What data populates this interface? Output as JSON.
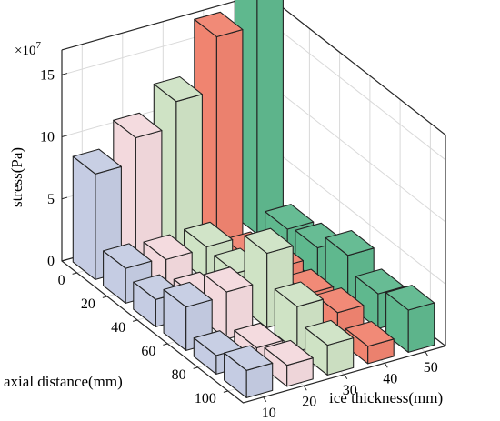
{
  "chart_data": {
    "type": "bar3d",
    "title": "",
    "zlabel": "stress(Pa)",
    "zmultiplier": "×10",
    "zmultiplier_exp": "7",
    "xlabel": "axial distance(mm)",
    "ylabel": "ice thickness(mm)",
    "x_ticks": [
      "0",
      "20",
      "40",
      "60",
      "80",
      "100"
    ],
    "y_ticks": [
      "10",
      "20",
      "30",
      "40",
      "50"
    ],
    "z_ticks": [
      "0",
      "5",
      "10",
      "15"
    ],
    "zlim": [
      0,
      17
    ],
    "grid": true,
    "series": [
      {
        "values": [
          8.5,
          2.8,
          2.2,
          3.5,
          1.5,
          2.2
        ]
      },
      {
        "values": [
          10.5,
          2.6,
          1.5,
          3.8,
          1.2,
          1.7
        ]
      },
      {
        "values": [
          12.5,
          2.7,
          2.5,
          6.0,
          3.6,
          2.4
        ]
      },
      {
        "values": [
          16.8,
          1.0,
          2.0,
          1.8,
          2.2,
          1.4
        ]
      },
      {
        "values": [
          19.0,
          2.3,
          2.7,
          4.0,
          2.8,
          3.4
        ]
      }
    ],
    "colors": [
      "#c5cce3",
      "#f3d9dd",
      "#cfe3c5",
      "#f08470",
      "#5fb88e"
    ]
  }
}
